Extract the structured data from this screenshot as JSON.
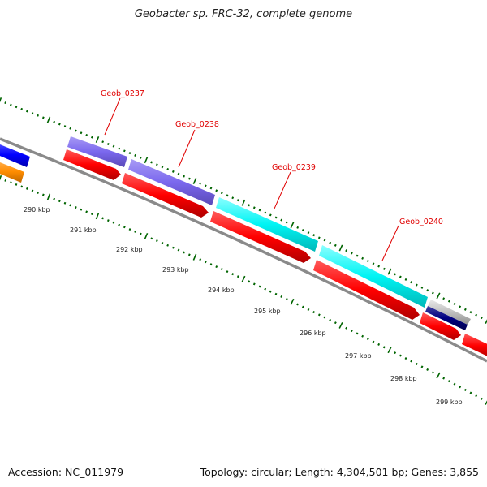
{
  "title": "Geobacter sp. FRC-32, complete genome",
  "footer": {
    "accession": "Accession: NC_011979",
    "summary": "Topology: circular; Length: 4,304,501 bp; Genes: 3,855"
  },
  "scale_labels": [
    "290 kbp",
    "291 kbp",
    "292 kbp",
    "293 kbp",
    "294 kbp",
    "295 kbp",
    "296 kbp",
    "297 kbp",
    "298 kbp",
    "299 kbp"
  ],
  "gene_labels": [
    "Geob_0237",
    "Geob_0238",
    "Geob_0239",
    "Geob_0240"
  ],
  "colors": {
    "backbone": "#8a8a8a",
    "cds": "#ff0000",
    "purple": "#7b68ee",
    "cyan": "#00ffff",
    "blue": "#0000ff",
    "orange": "#ff8c00",
    "navy": "#000080",
    "gray": "#c0c0c0",
    "ticks": "#006400",
    "labels": "#e00000"
  }
}
